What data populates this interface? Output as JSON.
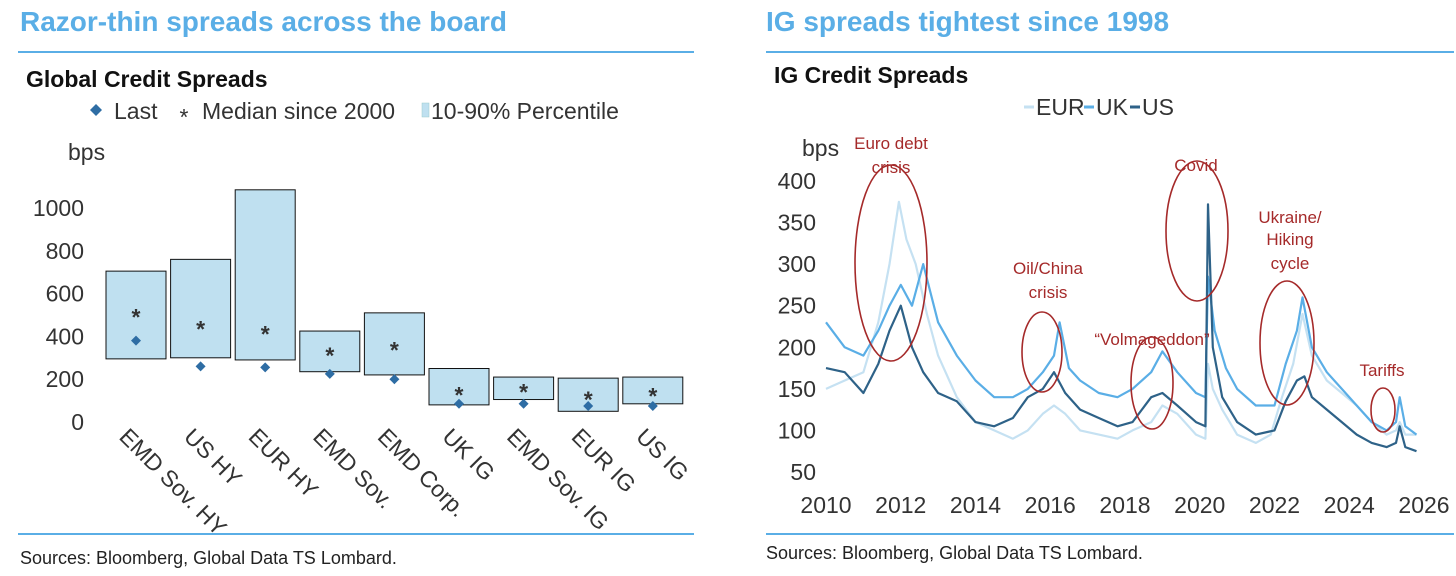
{
  "left": {
    "headline": "Razor-thin spreads across the board",
    "source": "Sources: Bloomberg, Global Data TS Lombard."
  },
  "right": {
    "headline": "IG spreads tightest since 1998",
    "source": "Sources: Bloomberg, Global Data TS Lombard."
  },
  "colors": {
    "accent": "#5aaee6",
    "box_fill": "#bfe0f0",
    "last_marker": "#2e6da4",
    "median_marker": "#8b1a1a",
    "eur": "#c5e1f2",
    "uk": "#5aaee6",
    "us": "#2e6288",
    "annotation": "#a52a2a"
  },
  "chart_data": [
    {
      "type": "bar",
      "subtype": "range-box",
      "title": "Global Credit Spreads",
      "ylabel": "bps",
      "ylim": [
        0,
        1000
      ],
      "yticks": [
        0,
        200,
        400,
        600,
        800,
        1000
      ],
      "legend": [
        "Last",
        "Median since 2000",
        "10-90% Percentile"
      ],
      "categories": [
        "EMD Sov. HY",
        "US HY",
        "EUR HY",
        "EMD Sov.",
        "EMD Corp.",
        "UK IG",
        "EMD Sov. IG",
        "EUR IG",
        "US IG"
      ],
      "p10": [
        295,
        300,
        290,
        235,
        220,
        80,
        105,
        50,
        85
      ],
      "p90": [
        705,
        760,
        1085,
        425,
        510,
        250,
        210,
        205,
        210
      ],
      "median": [
        500,
        445,
        420,
        320,
        345,
        135,
        150,
        115,
        130
      ],
      "last": [
        380,
        260,
        255,
        225,
        200,
        85,
        85,
        75,
        75
      ]
    },
    {
      "type": "line",
      "title": "IG Credit Spreads",
      "ylabel": "bps",
      "ylim": [
        50,
        400
      ],
      "yticks": [
        50,
        100,
        150,
        200,
        250,
        300,
        350,
        400
      ],
      "xlim": [
        2010,
        2026
      ],
      "xticks": [
        2010,
        2012,
        2014,
        2016,
        2018,
        2020,
        2022,
        2024,
        2026
      ],
      "series": [
        {
          "name": "EUR",
          "x": [
            2010.0,
            2010.5,
            2011.0,
            2011.4,
            2011.7,
            2011.95,
            2012.15,
            2012.4,
            2012.7,
            2013.0,
            2013.5,
            2014.0,
            2014.5,
            2015.0,
            2015.4,
            2015.8,
            2016.1,
            2016.4,
            2016.8,
            2017.3,
            2017.8,
            2018.2,
            2018.7,
            2019.0,
            2019.4,
            2019.9,
            2020.15,
            2020.22,
            2020.35,
            2020.6,
            2021.0,
            2021.5,
            2021.9,
            2022.2,
            2022.5,
            2022.75,
            2023.0,
            2023.4,
            2023.8,
            2024.2,
            2024.6,
            2025.0,
            2025.25,
            2025.35,
            2025.5,
            2025.8
          ],
          "values": [
            150,
            160,
            170,
            230,
            300,
            375,
            330,
            300,
            240,
            190,
            140,
            110,
            100,
            90,
            100,
            120,
            130,
            120,
            100,
            95,
            90,
            100,
            110,
            130,
            120,
            95,
            90,
            180,
            150,
            125,
            95,
            85,
            95,
            140,
            180,
            240,
            190,
            160,
            145,
            130,
            110,
            95,
            100,
            110,
            95,
            95
          ]
        },
        {
          "name": "UK",
          "x": [
            2010.0,
            2010.5,
            2011.0,
            2011.4,
            2011.7,
            2012.0,
            2012.3,
            2012.6,
            2013.0,
            2013.5,
            2014.0,
            2014.5,
            2015.0,
            2015.4,
            2015.8,
            2016.1,
            2016.25,
            2016.5,
            2016.8,
            2017.3,
            2017.8,
            2018.2,
            2018.7,
            2019.0,
            2019.4,
            2019.9,
            2020.15,
            2020.22,
            2020.4,
            2020.7,
            2021.0,
            2021.5,
            2022.0,
            2022.3,
            2022.6,
            2022.75,
            2023.0,
            2023.4,
            2023.8,
            2024.2,
            2024.6,
            2025.0,
            2025.25,
            2025.35,
            2025.5,
            2025.8
          ],
          "values": [
            230,
            200,
            190,
            220,
            250,
            275,
            250,
            300,
            230,
            190,
            160,
            140,
            140,
            150,
            170,
            190,
            230,
            175,
            160,
            145,
            140,
            150,
            170,
            195,
            170,
            145,
            140,
            285,
            220,
            175,
            150,
            130,
            130,
            180,
            220,
            260,
            200,
            170,
            150,
            130,
            110,
            100,
            110,
            140,
            105,
            95
          ]
        },
        {
          "name": "US",
          "x": [
            2010.0,
            2010.5,
            2011.0,
            2011.4,
            2011.7,
            2012.0,
            2012.3,
            2012.6,
            2013.0,
            2013.5,
            2014.0,
            2014.5,
            2015.0,
            2015.4,
            2015.8,
            2016.1,
            2016.4,
            2016.8,
            2017.3,
            2017.8,
            2018.2,
            2018.7,
            2019.0,
            2019.4,
            2019.9,
            2020.15,
            2020.22,
            2020.35,
            2020.6,
            2021.0,
            2021.5,
            2022.0,
            2022.3,
            2022.6,
            2022.8,
            2023.0,
            2023.4,
            2023.8,
            2024.2,
            2024.6,
            2025.0,
            2025.25,
            2025.35,
            2025.5,
            2025.8
          ],
          "values": [
            175,
            170,
            145,
            180,
            220,
            250,
            200,
            170,
            145,
            135,
            110,
            105,
            115,
            140,
            150,
            170,
            145,
            125,
            115,
            105,
            110,
            140,
            145,
            130,
            110,
            105,
            372,
            200,
            140,
            110,
            95,
            100,
            135,
            160,
            165,
            140,
            125,
            110,
            95,
            85,
            80,
            85,
            105,
            80,
            75
          ]
        }
      ],
      "annotations": [
        {
          "label": "Euro debt crisis",
          "lines": [
            "Euro debt",
            "crisis"
          ]
        },
        {
          "label": "Oil/China crisis",
          "lines": [
            "Oil/China",
            "crisis"
          ]
        },
        {
          "label": "“Volmageddon”",
          "lines": [
            "“Volmageddon”"
          ]
        },
        {
          "label": "Covid",
          "lines": [
            "Covid"
          ]
        },
        {
          "label": "Ukraine/ Hiking cycle",
          "lines": [
            "Ukraine/",
            "Hiking",
            "cycle"
          ]
        },
        {
          "label": "Tariffs",
          "lines": [
            "Tariffs"
          ]
        }
      ]
    }
  ]
}
